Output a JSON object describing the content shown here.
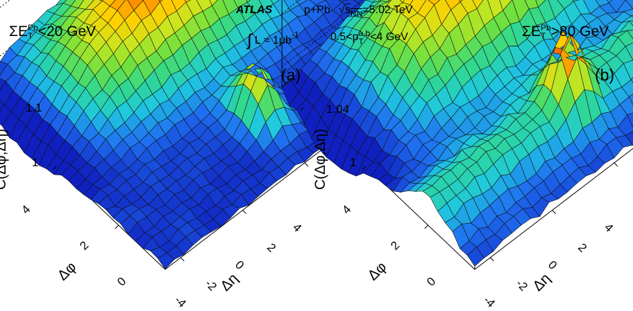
{
  "header": {
    "experiment": "ATLAS",
    "collision": "p+Pb",
    "energy_symbol": "s",
    "energy_sub": "NN",
    "energy_value": "=5.02 TeV",
    "lumi_prefix": "L ≈ 1μb",
    "lumi_exp": "-1",
    "pt_prefix": "0.5<p",
    "pt_sup": "a,b",
    "pt_sub": "T",
    "pt_suffix": "<4 GeV"
  },
  "panels": [
    {
      "id": "a",
      "label": "(a)",
      "et_prefix": "ΣE",
      "et_sup": "Pb",
      "et_sub": "T",
      "et_cut": "<20 GeV",
      "zlabel": "C(Δφ,Δη)",
      "z_ticks": [
        "1.1",
        "1"
      ],
      "phi_ticks": [
        "4",
        "2",
        "0"
      ],
      "eta_ticks": [
        "4",
        "2",
        "0",
        "-2",
        "-4"
      ],
      "xlabel": "Δη",
      "ylabel": "Δφ"
    },
    {
      "id": "b",
      "label": "(b)",
      "et_prefix": "ΣE",
      "et_sup": "Pb",
      "et_sub": "T",
      "et_cut": ">80 GeV",
      "zlabel": "C(Δφ,Δη)",
      "z_ticks": [
        "1.04",
        "1"
      ],
      "phi_ticks": [
        "4",
        "2",
        "0"
      ],
      "eta_ticks": [
        "4",
        "2",
        "0",
        "-2",
        "-4"
      ],
      "xlabel": "Δη",
      "ylabel": "Δφ"
    }
  ],
  "chart_data": [
    {
      "type": "heatmap",
      "title": "",
      "xlabel": "Δη",
      "ylabel": "Δφ",
      "zlabel": "C(Δφ,Δη)",
      "xlim": [
        -4.5,
        4.5
      ],
      "ylim": [
        -1.5,
        4.7
      ],
      "zlim": [
        0.98,
        1.12
      ],
      "x_ticks": [
        -4,
        -2,
        0,
        2,
        4
      ],
      "y_ticks": [
        0,
        2,
        4
      ],
      "z_ticks": [
        1.0,
        1.1
      ],
      "surface": {
        "baseline": 0.985,
        "near_side_peak": {
          "eta": 0.0,
          "phi": 0.0,
          "value": 1.09,
          "width_eta": 0.35,
          "width_phi": 0.45
        },
        "away_side_ridge": {
          "phi": 3.14,
          "value": 1.11,
          "width_phi": 1.1,
          "eta_falloff": 0.008
        },
        "noise": 0.005
      },
      "colorscale": [
        "#1020c0",
        "#1f6ff0",
        "#1fc8e0",
        "#30d890",
        "#6fe040",
        "#c8e620",
        "#ffd000",
        "#ff8000",
        "#e01010"
      ]
    },
    {
      "type": "heatmap",
      "title": "",
      "xlabel": "Δη",
      "ylabel": "Δφ",
      "zlabel": "C(Δφ,Δη)",
      "xlim": [
        -4.5,
        4.5
      ],
      "ylim": [
        -1.5,
        4.7
      ],
      "zlim": [
        0.985,
        1.05
      ],
      "x_ticks": [
        -4,
        -2,
        0,
        2,
        4
      ],
      "y_ticks": [
        0,
        2,
        4
      ],
      "z_ticks": [
        1.0,
        1.04
      ],
      "surface": {
        "baseline": 0.99,
        "near_side_peak": {
          "eta": 0.0,
          "phi": 0.0,
          "value": 1.035,
          "width_eta": 0.35,
          "width_phi": 0.4
        },
        "near_side_ridge": {
          "phi": 0.0,
          "value": 1.008,
          "width_phi": 0.5
        },
        "away_side_ridge": {
          "phi": 3.14,
          "value": 1.045,
          "width_phi": 1.0,
          "eta_falloff": 0.004
        },
        "noise": 0.003
      },
      "colorscale": [
        "#1020c0",
        "#1f6ff0",
        "#1fc8e0",
        "#30d890",
        "#6fe040",
        "#c8e620",
        "#ffd000",
        "#ff8000",
        "#e01010"
      ]
    }
  ]
}
